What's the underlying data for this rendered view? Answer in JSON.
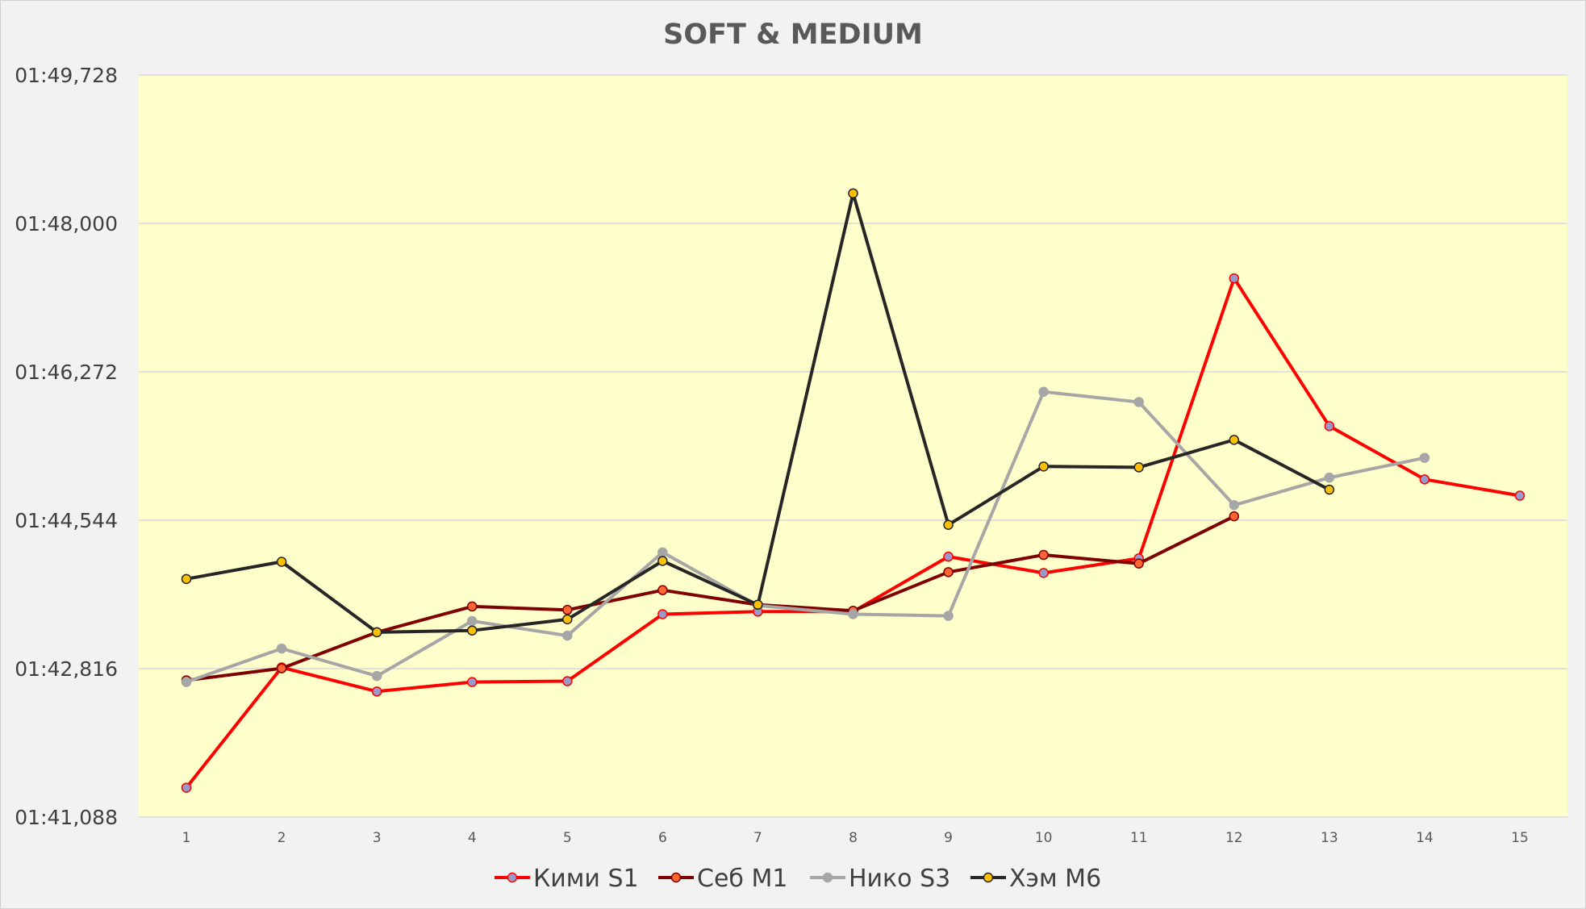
{
  "chart_data": {
    "type": "line",
    "title": "SOFT & MEDIUM",
    "xlabel": "",
    "ylabel": "",
    "categories": [
      "1",
      "2",
      "3",
      "4",
      "5",
      "6",
      "7",
      "8",
      "9",
      "10",
      "11",
      "12",
      "13",
      "14",
      "15"
    ],
    "y_tick_labels": [
      "01:41,088",
      "01:42,816",
      "01:44,544",
      "01:46,272",
      "01:48,000",
      "01:49,728"
    ],
    "ylim": [
      101.088,
      109.728
    ],
    "grid": true,
    "legend_position": "bottom",
    "plot_background": "#ffffcc",
    "series": [
      {
        "name": "Кими S1",
        "color": "#ff0000",
        "marker_color": "#9999cc",
        "values": [
          101.43,
          102.83,
          102.55,
          102.66,
          102.67,
          103.45,
          103.48,
          103.48,
          104.12,
          103.93,
          104.1,
          107.36,
          105.64,
          105.02,
          104.83
        ]
      },
      {
        "name": "Себ M1",
        "color": "#7f0000",
        "marker_color": "#ff6633",
        "values": [
          102.68,
          102.82,
          103.24,
          103.54,
          103.5,
          103.73,
          103.56,
          103.49,
          103.94,
          104.14,
          104.04,
          104.59,
          null,
          null,
          null
        ]
      },
      {
        "name": "Нико S3",
        "color": "#a6a6a6",
        "marker_color": "#a6a6a6",
        "values": [
          102.66,
          103.05,
          102.73,
          103.37,
          103.2,
          104.17,
          103.55,
          103.45,
          103.43,
          106.04,
          105.92,
          104.72,
          105.04,
          105.27,
          null
        ]
      },
      {
        "name": "Хэм M6",
        "color": "#262626",
        "marker_color": "#ffc000",
        "values": [
          103.86,
          104.06,
          103.24,
          103.26,
          103.39,
          104.07,
          103.56,
          108.35,
          104.49,
          105.17,
          105.16,
          105.48,
          104.9,
          null,
          null
        ]
      }
    ]
  }
}
